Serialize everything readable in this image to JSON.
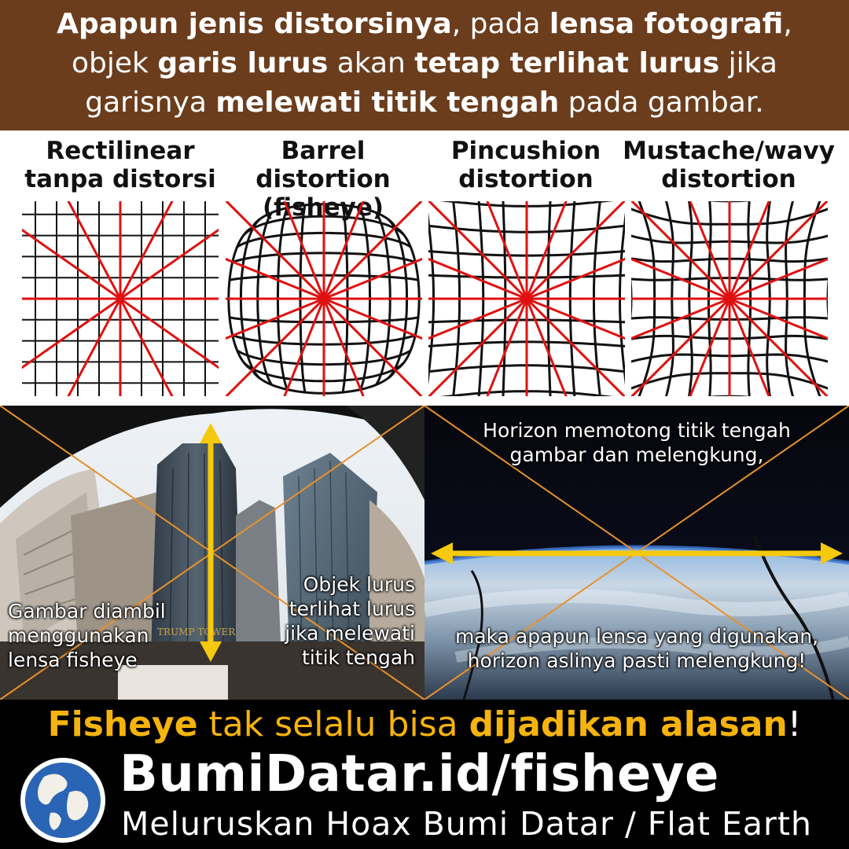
{
  "header": {
    "line1": [
      {
        "text": "Apapun jenis distorsinya",
        "bold": true
      },
      {
        "text": ", pada ",
        "bold": false
      },
      {
        "text": "lensa fotografi",
        "bold": true
      },
      {
        "text": ",",
        "bold": false
      }
    ],
    "line2": [
      {
        "text": "objek ",
        "bold": false
      },
      {
        "text": "garis lurus",
        "bold": true
      },
      {
        "text": " akan  ",
        "bold": false
      },
      {
        "text": "tetap terlihat lurus",
        "bold": true
      },
      {
        "text": " jika",
        "bold": false
      }
    ],
    "line3": [
      {
        "text": "garisnya ",
        "bold": false
      },
      {
        "text": "melewati titik tengah",
        "bold": true
      },
      {
        "text": " pada gambar.",
        "bold": false
      }
    ]
  },
  "diagrams": [
    {
      "label_line1": "Rectilinear",
      "label_line2": "tanpa distorsi",
      "kind": "rectilinear"
    },
    {
      "label_line1": "Barrel distortion",
      "label_line2": "(fisheye)",
      "kind": "barrel"
    },
    {
      "label_line1": "Pincushion",
      "label_line2": "distortion",
      "kind": "pincushion"
    },
    {
      "label_line1": "Mustache/wavy",
      "label_line2": "distortion",
      "kind": "mustache"
    }
  ],
  "photo_left": {
    "caption_left": [
      "Gambar diambil",
      "menggunakan",
      "lensa fisheye"
    ],
    "caption_right": [
      "Objek lurus",
      "terlihat lurus",
      "jika melewati",
      "titik tengah"
    ],
    "sign_text": "TRUMP TOWER"
  },
  "photo_right": {
    "caption_top": [
      "Horizon memotong titik tengah",
      "gambar dan melengkung,"
    ],
    "caption_bottom": [
      "maka apapun lensa yang digunakan,",
      "horizon aslinya pasti melengkung!"
    ]
  },
  "banner": [
    {
      "text": "Fisheye",
      "style": "bold"
    },
    {
      "text": " tak selalu bisa ",
      "style": "normal"
    },
    {
      "text": "dijadikan alasan",
      "style": "bold"
    },
    {
      "text": "!",
      "style": "excl"
    }
  ],
  "footer": {
    "site": "BumiDatar.id/fisheye",
    "tagline": "Meluruskan Hoax Bumi Datar / Flat Earth",
    "logo_icon": "globe-icon"
  },
  "colors": {
    "header_bg": "#6b3d1d",
    "accent_red": "#e01010",
    "accent_yellow": "#f5b30d",
    "guide_orange": "#e8912a"
  }
}
